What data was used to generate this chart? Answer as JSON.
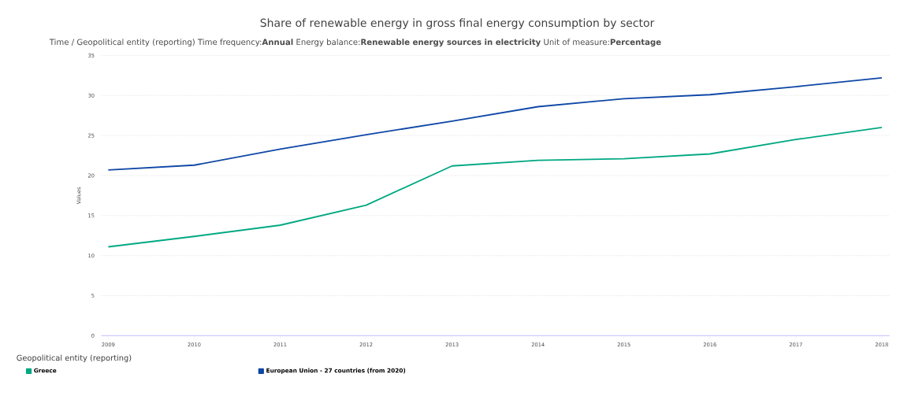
{
  "chart_data": {
    "type": "line",
    "title": "Share of renewable energy in gross final energy consumption by sector",
    "subtitle": "Time / Geopolitical entity (reporting)  Time frequency:**Annual**  Energy balance:**Renewable energy sources in electricity**  Unit of measure:**Percentage**",
    "ylabel": "Values",
    "legend_title": "Geopolitical entity (reporting)",
    "categories": [
      "2009",
      "2010",
      "2011",
      "2012",
      "2013",
      "2014",
      "2015",
      "2016",
      "2017",
      "2018"
    ],
    "series": [
      {
        "name": "Greece",
        "color": "#00a882",
        "values": [
          11.1,
          12.4,
          13.8,
          16.3,
          21.2,
          21.9,
          22.1,
          22.7,
          24.5,
          26.0
        ]
      },
      {
        "name": "European Union - 27 countries (from 2020)",
        "color": "#0e47a6",
        "values": [
          20.7,
          21.3,
          23.3,
          25.1,
          26.8,
          28.6,
          29.6,
          30.1,
          31.1,
          32.2
        ]
      }
    ],
    "ylim": [
      0,
      35
    ],
    "yticks": [
      0,
      5,
      10,
      15,
      20,
      25,
      30,
      35
    ],
    "grid": "y",
    "legend": "bottom",
    "marker": "none",
    "line_style": "solid"
  }
}
